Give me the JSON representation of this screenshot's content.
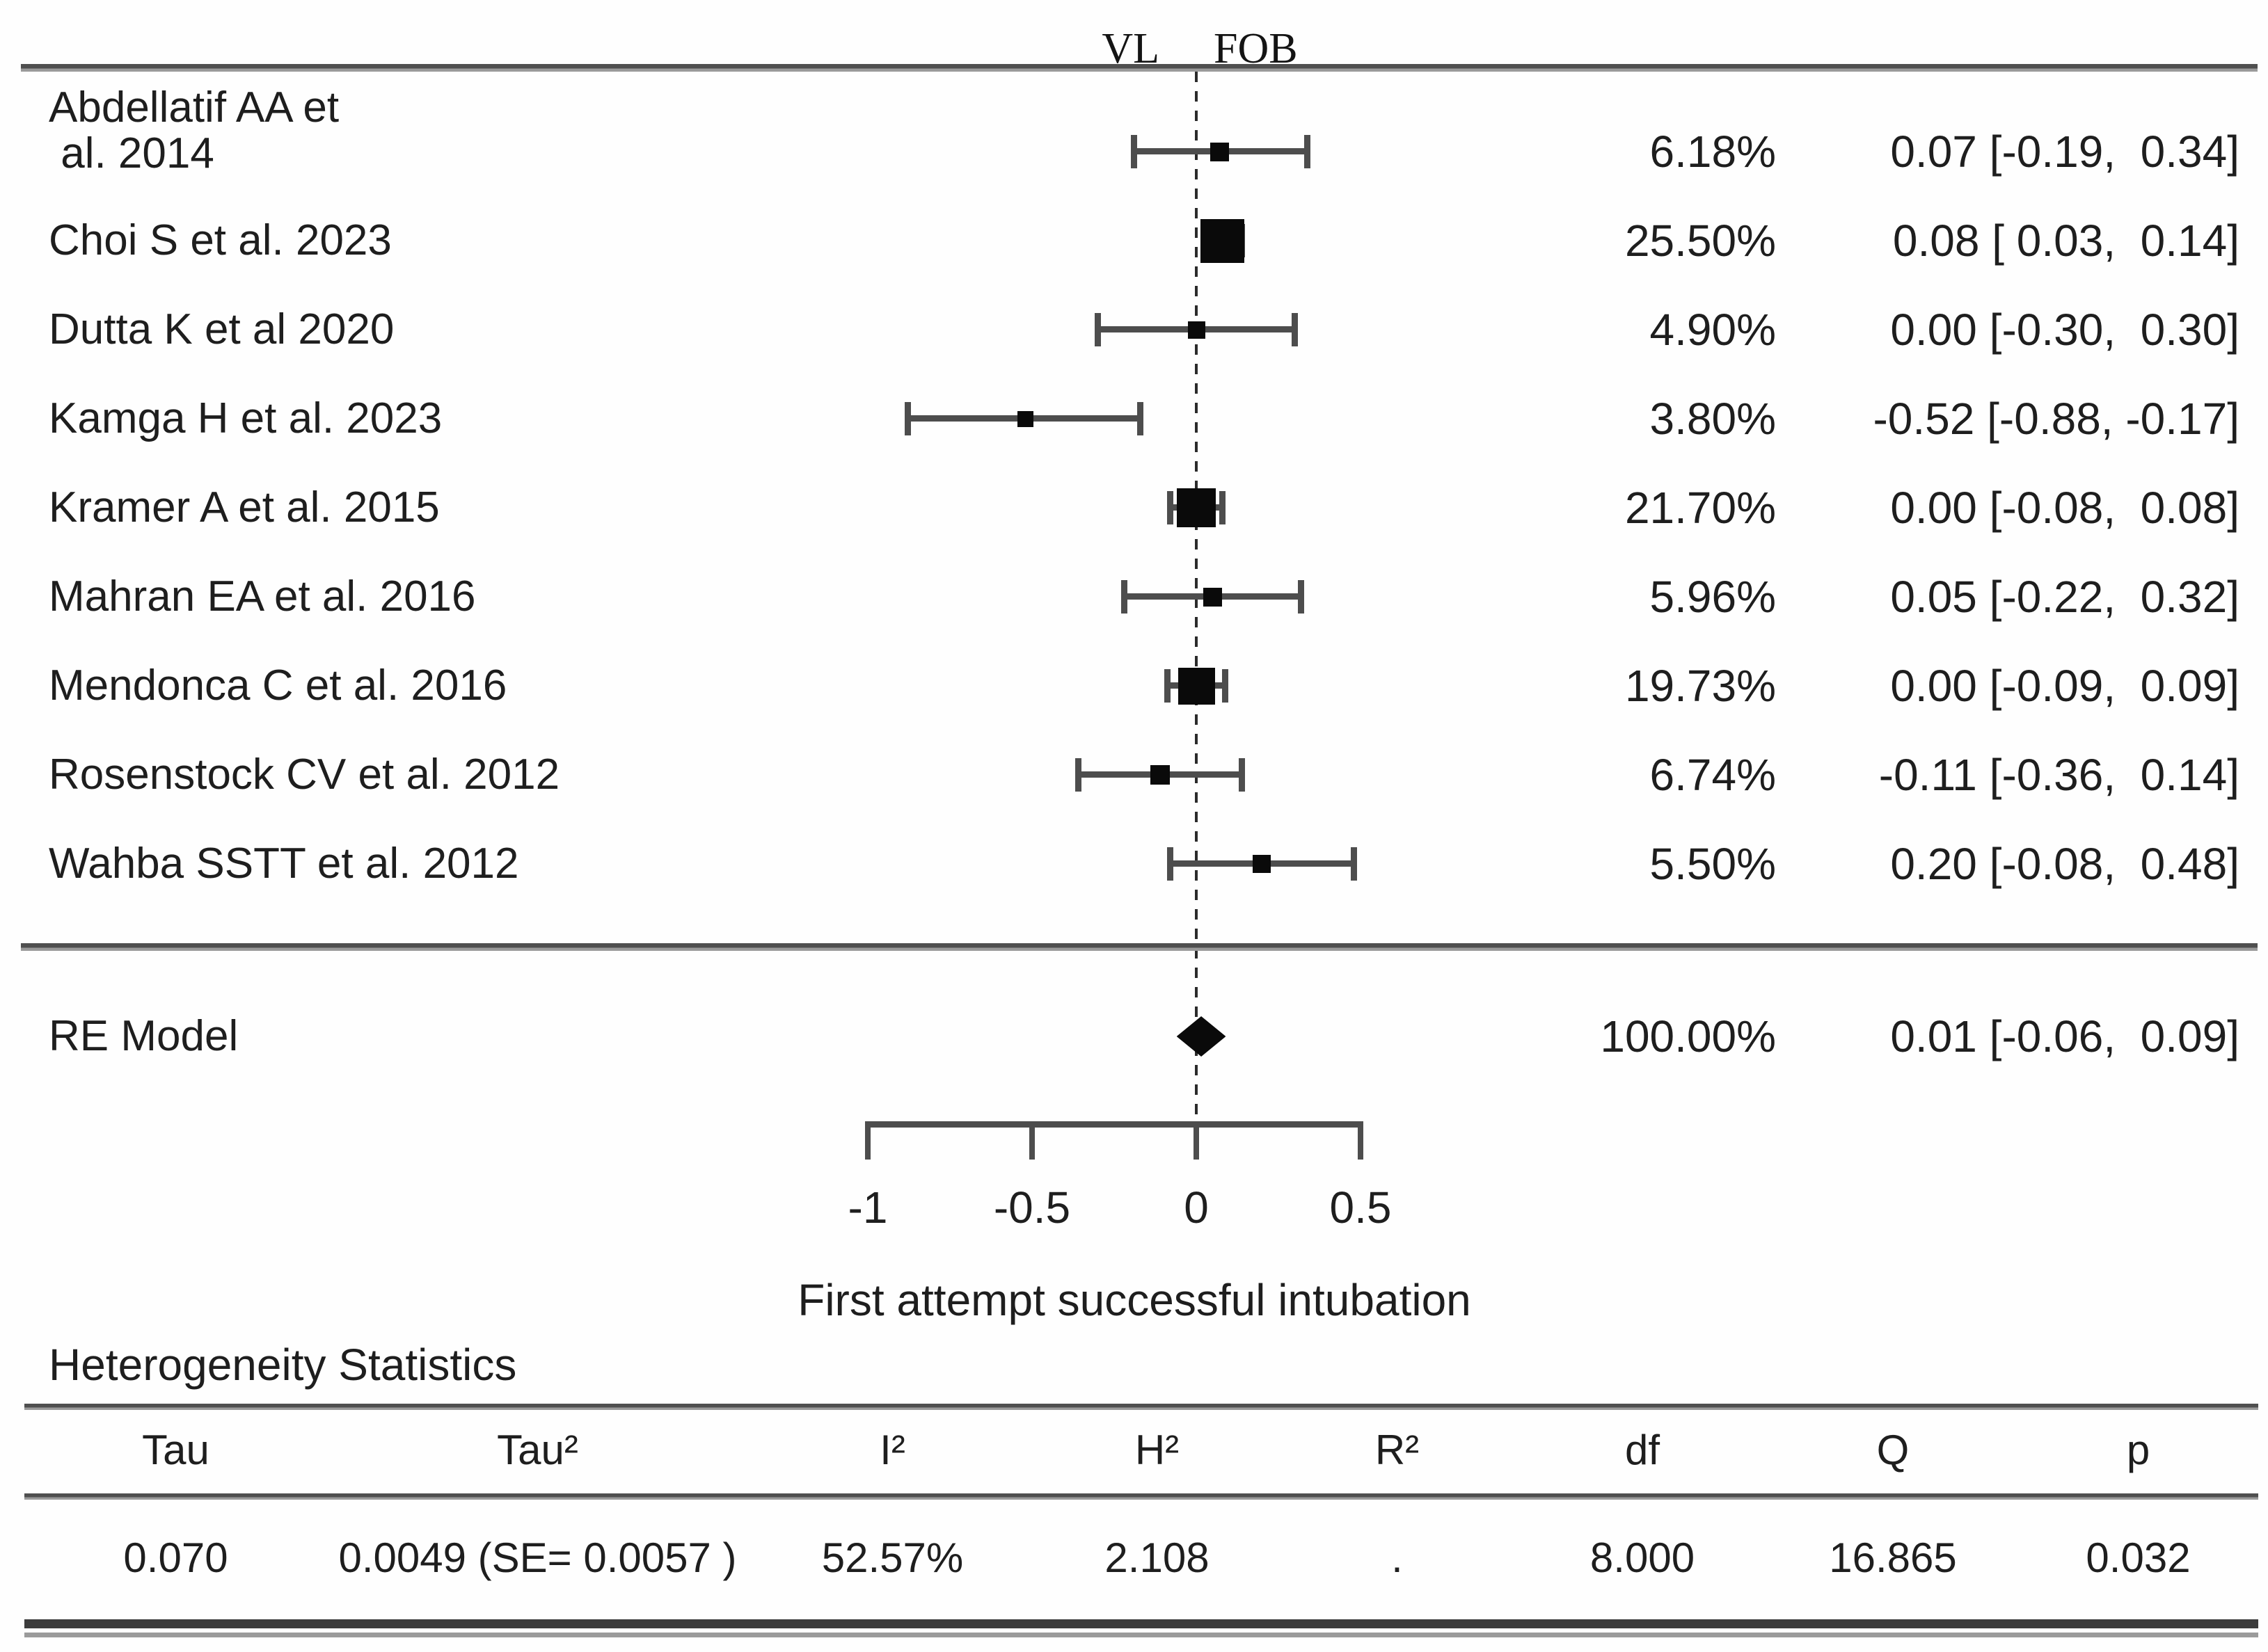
{
  "chart_data": {
    "type": "forest",
    "title": "",
    "xlabel": "First attempt successful intubation",
    "xlim": [
      -1,
      0.5
    ],
    "x_ticks": [
      -1,
      -0.5,
      0,
      0.5
    ],
    "x_tick_labels": [
      "-1",
      "-0.5",
      "0",
      "0.5"
    ],
    "grid": false,
    "group_labels": {
      "left": "VL",
      "right": "FOB"
    },
    "studies": [
      {
        "name": "Abdellatif AA et\n al. 2014",
        "weight": "6.18%",
        "weight_pct": 6.18,
        "estimate": 0.07,
        "ci_low": -0.19,
        "ci_high": 0.34,
        "display": "0.07 [-0.19,  0.34]"
      },
      {
        "name": "Choi S et al. 2023",
        "weight": "25.50%",
        "weight_pct": 25.5,
        "estimate": 0.08,
        "ci_low": 0.03,
        "ci_high": 0.14,
        "display": "0.08 [ 0.03,  0.14]"
      },
      {
        "name": "Dutta K et al 2020",
        "weight": "4.90%",
        "weight_pct": 4.9,
        "estimate": 0.0,
        "ci_low": -0.3,
        "ci_high": 0.3,
        "display": "0.00 [-0.30,  0.30]"
      },
      {
        "name": "Kamga H et al. 2023",
        "weight": "3.80%",
        "weight_pct": 3.8,
        "estimate": -0.52,
        "ci_low": -0.88,
        "ci_high": -0.17,
        "display": "-0.52 [-0.88, -0.17]"
      },
      {
        "name": "Kramer A et al. 2015",
        "weight": "21.70%",
        "weight_pct": 21.7,
        "estimate": 0.0,
        "ci_low": -0.08,
        "ci_high": 0.08,
        "display": "0.00 [-0.08,  0.08]"
      },
      {
        "name": "Mahran EA et al. 2016",
        "weight": "5.96%",
        "weight_pct": 5.96,
        "estimate": 0.05,
        "ci_low": -0.22,
        "ci_high": 0.32,
        "display": "0.05 [-0.22,  0.32]"
      },
      {
        "name": "Mendonca C et al. 2016",
        "weight": "19.73%",
        "weight_pct": 19.73,
        "estimate": 0.0,
        "ci_low": -0.09,
        "ci_high": 0.09,
        "display": "0.00 [-0.09,  0.09]"
      },
      {
        "name": "Rosenstock CV et al. 2012",
        "weight": "6.74%",
        "weight_pct": 6.74,
        "estimate": -0.11,
        "ci_low": -0.36,
        "ci_high": 0.14,
        "display": "-0.11 [-0.36,  0.14]"
      },
      {
        "name": "Wahba SSTT et al. 2012",
        "weight": "5.50%",
        "weight_pct": 5.5,
        "estimate": 0.2,
        "ci_low": -0.08,
        "ci_high": 0.48,
        "display": "0.20 [-0.08,  0.48]"
      }
    ],
    "summary": {
      "name": "RE Model",
      "weight": "100.00%",
      "weight_pct": 100.0,
      "estimate": 0.01,
      "ci_low": -0.06,
      "ci_high": 0.09,
      "display": "0.01 [-0.06,  0.09]"
    },
    "heterogeneity": {
      "title": "Heterogeneity Statistics",
      "columns": [
        "Tau",
        "Tau²",
        "I²",
        "H²",
        "R²",
        "df",
        "Q",
        "p"
      ],
      "values": [
        "0.070",
        "0.0049 (SE= 0.0057 )",
        "52.57%",
        "2.108",
        ".",
        "8.000",
        "16.865",
        "0.032"
      ]
    }
  }
}
